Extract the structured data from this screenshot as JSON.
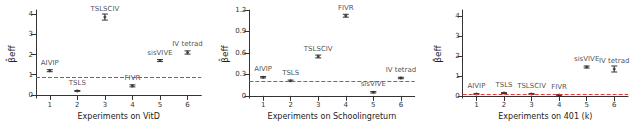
{
  "chart_data": [
    {
      "type": "scatter",
      "x_label": "Experiments on VitD",
      "y_label": "β̂eff",
      "x": [
        1,
        2,
        3,
        4,
        5,
        6
      ],
      "values": [
        1.2,
        0.2,
        3.85,
        0.45,
        1.7,
        2.1
      ],
      "error": [
        0.05,
        0.02,
        0.15,
        0.05,
        0.05,
        0.08
      ],
      "labels": [
        "AIVIP",
        "TSLS",
        "TSLSCIV",
        "FIVR",
        "sisVIVE",
        "IV tetrad"
      ],
      "color": "#333333",
      "reference": {
        "value": 0.9,
        "color": "#e8383d",
        "line_style": "dashed"
      },
      "xlim": [
        0.5,
        6.5
      ],
      "xticks": [
        1,
        2,
        3,
        4,
        5,
        6
      ],
      "ylim": [
        -0.15,
        4.2
      ],
      "yticks": [
        0,
        1,
        2,
        3,
        4
      ],
      "grid": false
    },
    {
      "type": "scatter",
      "x_label": "Experiments on Schoolingreturn",
      "y_label": "β̂eff",
      "x": [
        1,
        2,
        3,
        4,
        5,
        6
      ],
      "values": [
        0.26,
        0.21,
        0.55,
        1.12,
        0.05,
        0.25
      ],
      "error": [
        0.01,
        0.01,
        0.02,
        0.02,
        0.01,
        0.01
      ],
      "labels": [
        "AIVIP",
        "TSLS",
        "TSLSCIV",
        "FIVR",
        "sisVIVE",
        "IV tetrad"
      ],
      "color": "#333333",
      "reference": {
        "value": 0.2,
        "color": "#e8383d",
        "line_style": "dashed"
      },
      "xlim": [
        0.5,
        6.5
      ],
      "xticks": [
        1,
        2,
        3,
        4,
        5,
        6
      ],
      "ylim": [
        -0.03,
        1.2
      ],
      "yticks": [
        0,
        0.3,
        0.6,
        0.9,
        1.2
      ],
      "grid": false
    },
    {
      "type": "scatter",
      "x_label": "Experiments on 401 (k)",
      "y_label": "β̂eff",
      "x": [
        1,
        2,
        3,
        4,
        5,
        6
      ],
      "values": [
        0.1,
        0.15,
        0.1,
        0.05,
        1.45,
        1.35
      ],
      "error": [
        0.02,
        0.02,
        0.02,
        0.02,
        0.05,
        0.15
      ],
      "labels": [
        "AIVIP",
        "TSLS",
        "TSLSCIV",
        "FIVR",
        "sisVIVE",
        "IV tetrad"
      ],
      "color": "#333333",
      "reference": {
        "value": 0.1,
        "color": "#e8383d",
        "line_style": "dashed"
      },
      "xlim": [
        0.5,
        6.5
      ],
      "xticks": [
        1,
        2,
        3,
        4,
        5,
        6
      ],
      "ylim": [
        -0.1,
        4.3
      ],
      "yticks": [
        0,
        1,
        2,
        3,
        4
      ],
      "grid": false
    }
  ]
}
